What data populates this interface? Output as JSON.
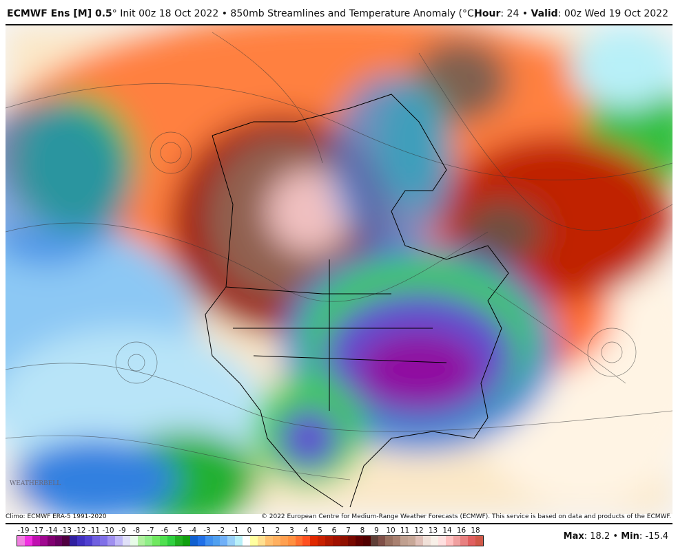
{
  "header": {
    "model": "ECMWF Ens [M] 0.5",
    "degree": "°",
    "init": "Init 00z 18 Oct 2022",
    "sep": "•",
    "product": "850mb Streamlines and Temperature Anomaly (°C)",
    "hour_label": "Hour",
    "hour": ": 24",
    "valid_label": "Valid",
    "valid": ": 00z Wed 19 Oct 2022"
  },
  "footer": {
    "climo": "Climo: ECMWF ERA-5 1991-2020",
    "copyright": "© 2022 European Centre for Medium-Range Weather Forecasts (ECMWF). This service is based on data and products of the ECMWF."
  },
  "logo": "WeatherBELL",
  "stats": {
    "max_label": "Max",
    "max": ": 18.2",
    "sep": "•",
    "min_label": "Min",
    "min": ": -15.4"
  },
  "colorbar": {
    "labels": [
      "-19",
      "-17",
      "-14",
      "-13",
      "-12",
      "-11",
      "-10",
      "-9",
      "-8",
      "-7",
      "-6",
      "-5",
      "-4",
      "-3",
      "-2",
      "-1",
      "0",
      "1",
      "2",
      "3",
      "4",
      "5",
      "6",
      "7",
      "8",
      "9",
      "10",
      "11",
      "12",
      "13",
      "14",
      "16",
      "18"
    ],
    "colors": [
      "#f080e0",
      "#f030e0",
      "#c010b0",
      "#a00890",
      "#800070",
      "#680060",
      "#500040",
      "#3020a0",
      "#4030c0",
      "#5040d0",
      "#7060e0",
      "#8070e8",
      "#a090f0",
      "#c0b8f8",
      "#e0e0f8",
      "#e8fce8",
      "#b0f0a0",
      "#90ee88",
      "#70e860",
      "#50e050",
      "#30d040",
      "#20b020",
      "#10a010",
      "#1060d0",
      "#2070e8",
      "#4090f0",
      "#50a0f0",
      "#70b0f8",
      "#98d0f8",
      "#b8f0f8",
      "#ffffff",
      "#ffffa0",
      "#ffe090",
      "#ffc070",
      "#ffb060",
      "#ffa050",
      "#ff9040",
      "#ff7030",
      "#ff5020",
      "#e02800",
      "#c82000",
      "#b01800",
      "#a01000",
      "#901000",
      "#780800",
      "#600000",
      "#500000",
      "#604038",
      "#805048",
      "#987060",
      "#a88070",
      "#c0a090",
      "#c8a898",
      "#e0c0b8",
      "#f0e0d8",
      "#f8f0e8",
      "#ffe0e0",
      "#ffc0c0",
      "#f0a0a0",
      "#e88080",
      "#e06060",
      "#d05848"
    ]
  }
}
